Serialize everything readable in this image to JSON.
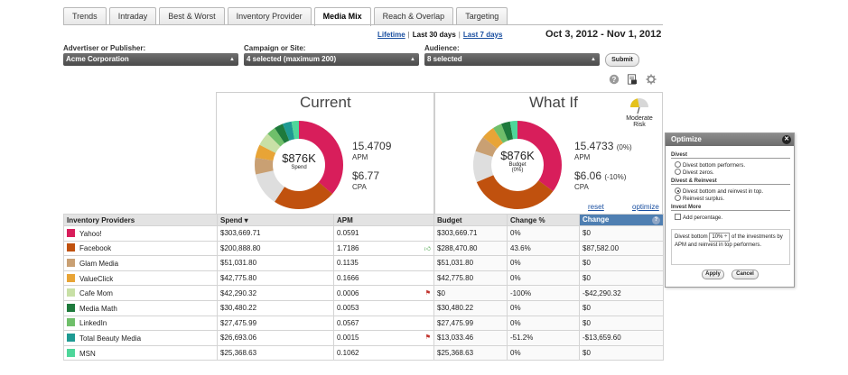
{
  "tabs": [
    "Trends",
    "Intraday",
    "Best & Worst",
    "Inventory Provider",
    "Media Mix",
    "Reach & Overlap",
    "Targeting"
  ],
  "active_tab": "Media Mix",
  "date_links": {
    "lifetime": "Lifetime",
    "last30": "Last 30 days",
    "last7": "Last 7 days"
  },
  "date_range": "Oct 3, 2012 - Nov 1, 2012",
  "filters": {
    "advertiser_label": "Advertiser or Publisher:",
    "advertiser_value": "Acme Corporation",
    "campaign_label": "Campaign or Site:",
    "campaign_value": "4 selected (maximum 200)",
    "audience_label": "Audience:",
    "audience_value": "8 selected",
    "submit": "Submit"
  },
  "current": {
    "title": "Current",
    "center_value": "$876K",
    "center_label": "Spend",
    "apm_value": "15.4709",
    "apm_label": "APM",
    "cpa_value": "$6.77",
    "cpa_label": "CPA"
  },
  "whatif": {
    "title": "What If",
    "center_value": "$876K",
    "center_label": "Budget",
    "center_pct": "(0%)",
    "apm_value": "15.4733",
    "apm_change": "(0%)",
    "apm_label": "APM",
    "cpa_value": "$6.06",
    "cpa_change": "(-10%)",
    "cpa_label": "CPA",
    "risk_label": "Moderate Risk",
    "reset": "reset",
    "optimize": "optimize"
  },
  "table": {
    "headers": [
      "Inventory Providers",
      "Spend ▾",
      "APM",
      "Budget",
      "Change %",
      "Change"
    ],
    "rows": [
      {
        "name": "Yahoo!",
        "color": "#d81e5b",
        "spend": "$303,669.71",
        "apm": "0.0591",
        "flag": "",
        "budget": "$303,669.71",
        "pct": "0%",
        "change": "$0"
      },
      {
        "name": "Facebook",
        "color": "#c0510e",
        "spend": "$200,888.80",
        "apm": "1.7186",
        "flag": "up",
        "budget": "$288,470.80",
        "pct": "43.6%",
        "change": "$87,582.00"
      },
      {
        "name": "Glam Media",
        "color": "#c9a073",
        "spend": "$51,031.80",
        "apm": "0.1135",
        "flag": "",
        "budget": "$51,031.80",
        "pct": "0%",
        "change": "$0"
      },
      {
        "name": "ValueClick",
        "color": "#e8a436",
        "spend": "$42,775.80",
        "apm": "0.1666",
        "flag": "",
        "budget": "$42,775.80",
        "pct": "0%",
        "change": "$0"
      },
      {
        "name": "Cafe Mom",
        "color": "#c8e0a6",
        "spend": "$42,290.32",
        "apm": "0.0006",
        "flag": "down",
        "budget": "$0",
        "pct": "-100%",
        "change": "-$42,290.32"
      },
      {
        "name": "Media Math",
        "color": "#1e7a3c",
        "spend": "$30,480.22",
        "apm": "0.0053",
        "flag": "",
        "budget": "$30,480.22",
        "pct": "0%",
        "change": "$0"
      },
      {
        "name": "LinkedIn",
        "color": "#6fbf6a",
        "spend": "$27,475.99",
        "apm": "0.0567",
        "flag": "",
        "budget": "$27,475.99",
        "pct": "0%",
        "change": "$0"
      },
      {
        "name": "Total Beauty Media",
        "color": "#1e9a93",
        "spend": "$26,693.06",
        "apm": "0.0015",
        "flag": "down",
        "budget": "$13,033.46",
        "pct": "-51.2%",
        "change": "-$13,659.60"
      },
      {
        "name": "MSN",
        "color": "#4ed69a",
        "spend": "$25,368.63",
        "apm": "0.1062",
        "flag": "",
        "budget": "$25,368.63",
        "pct": "0%",
        "change": "$0"
      }
    ]
  },
  "optimize_dialog": {
    "title": "Optimize",
    "divest_heading": "Divest",
    "divest_opt1": "Divest bottom performers.",
    "divest_opt2": "Divest zeros.",
    "reinvest_heading": "Divest & Reinvest",
    "reinvest_opt1": "Divest bottom and reinvest in top.",
    "reinvest_opt2": "Reinvest surplus.",
    "invest_heading": "Invest More",
    "invest_opt1": "Add percentage.",
    "divest_text_a": "Divest bottom",
    "divest_pct": "10% ÷",
    "divest_text_b": "of the investments by APM and reinvest in top performers.",
    "apply": "Apply",
    "cancel": "Cancel"
  },
  "icons": [
    "help-icon",
    "export-icon",
    "settings-gear-icon",
    "risk-gauge-icon",
    "close-icon",
    "thumbs-up-icon",
    "flag-icon"
  ]
}
